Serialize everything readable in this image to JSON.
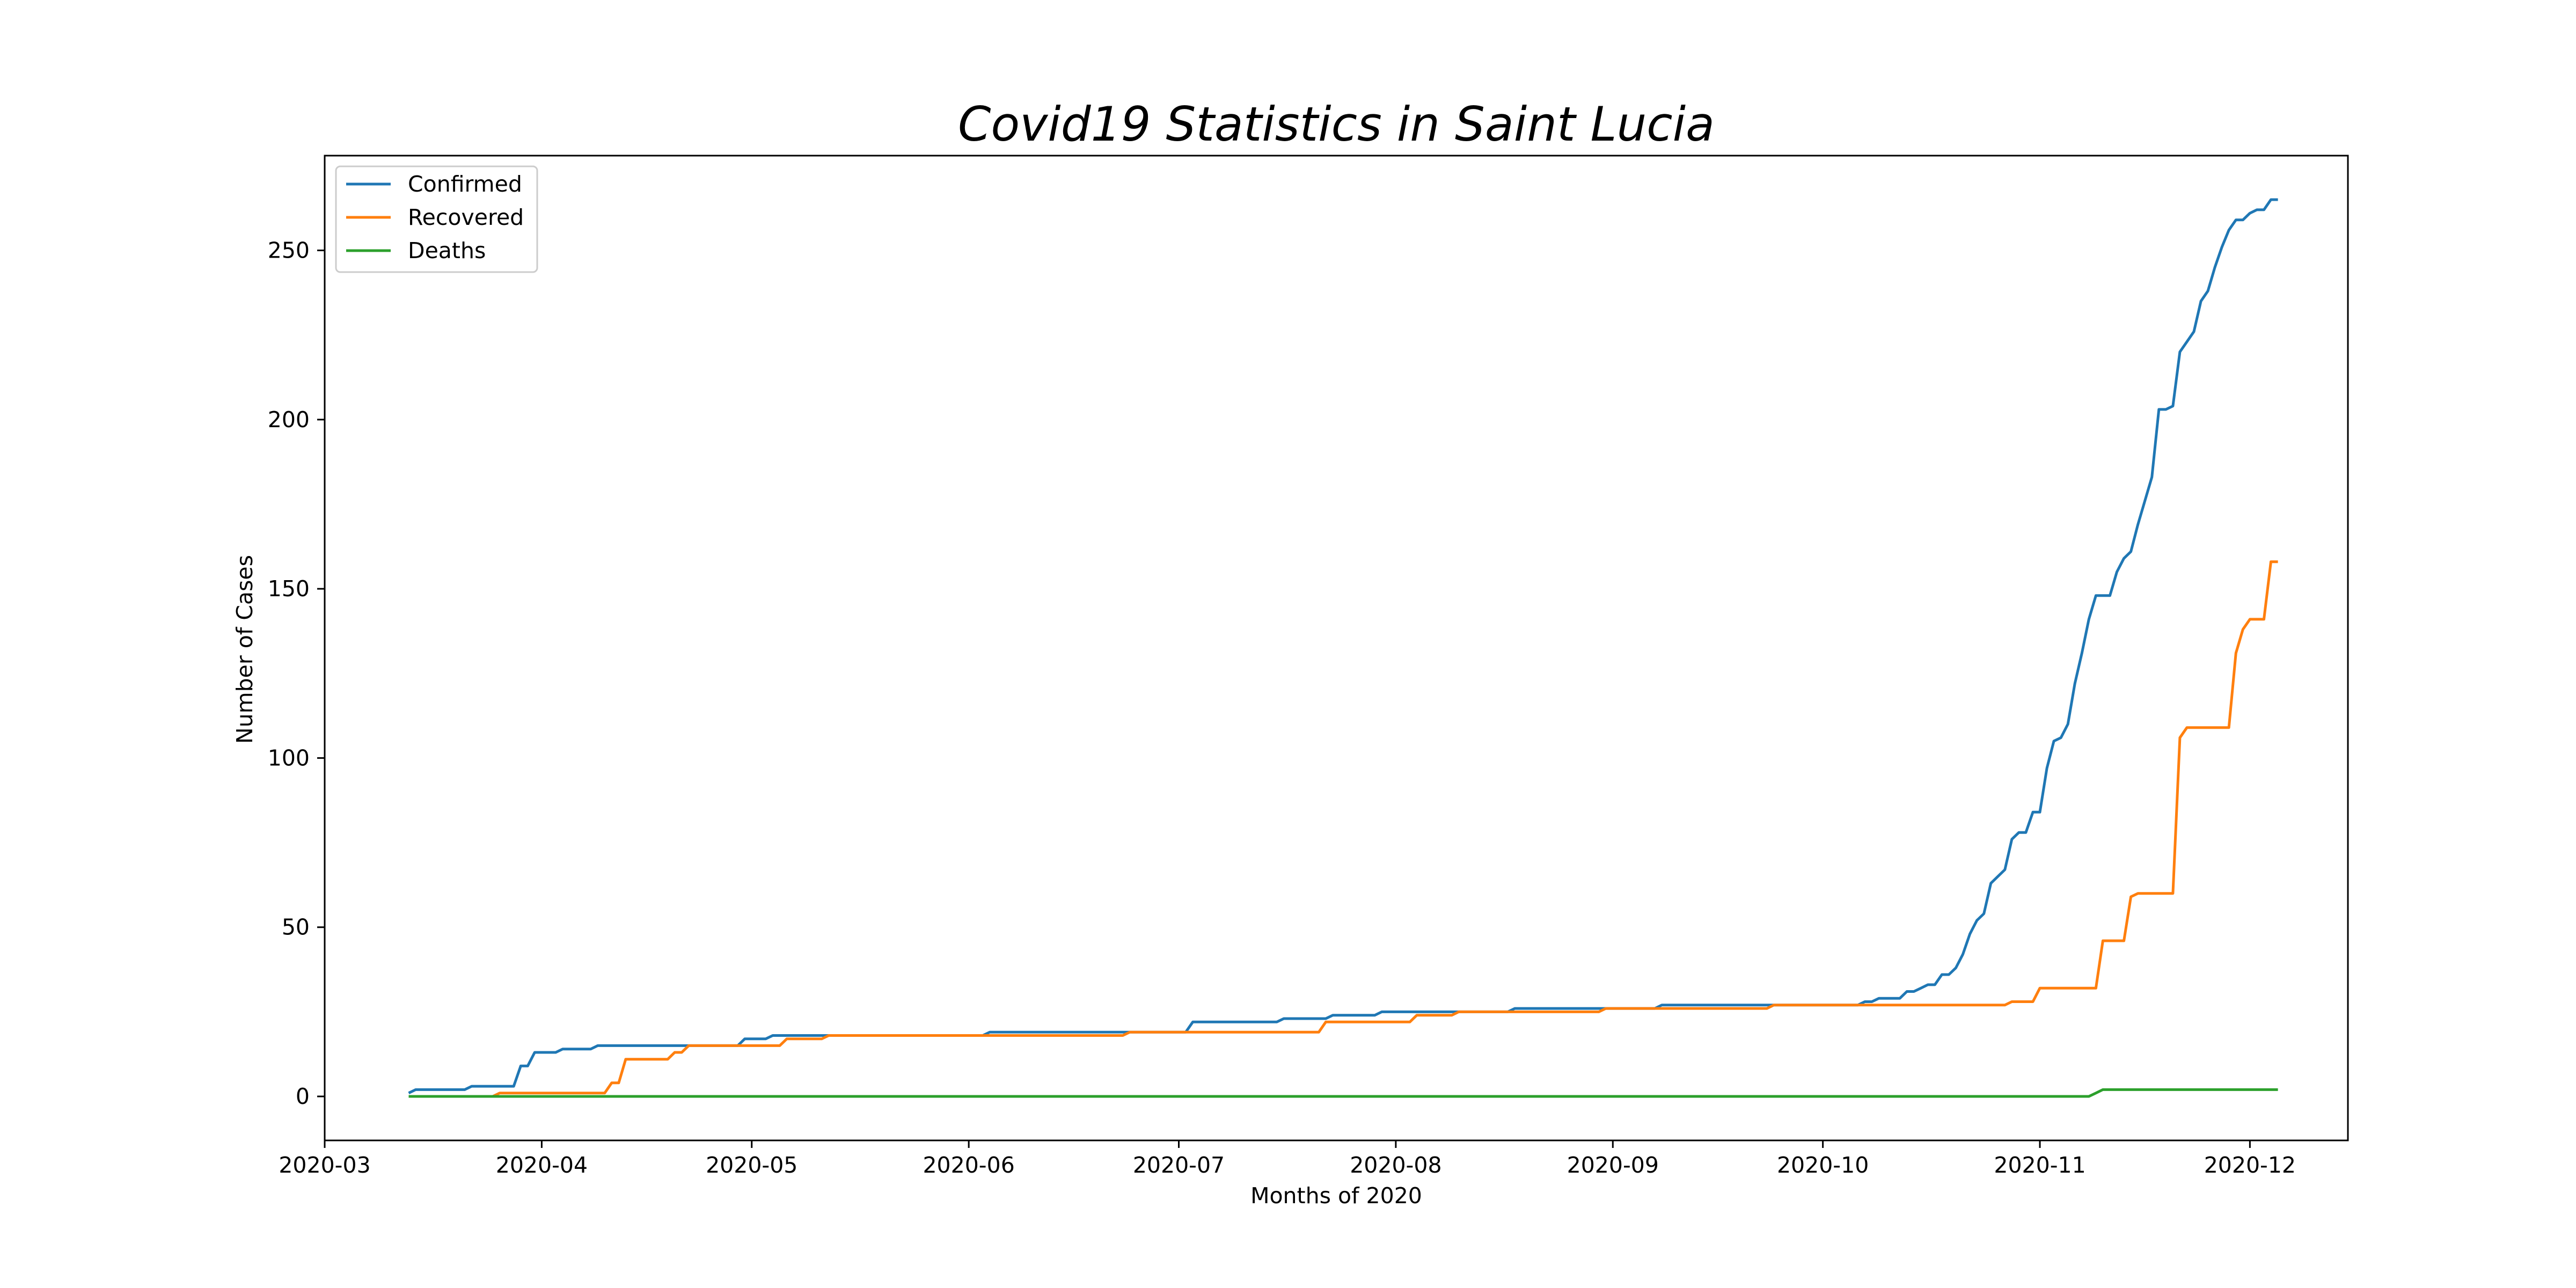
{
  "chart_data": {
    "type": "line",
    "title": "Covid19 Statistics in Saint Lucia",
    "xlabel": "Months of 2020",
    "ylabel": "Number of Cases",
    "x_axis_type": "date",
    "xlim": [
      "2020-03-01",
      "2020-12-15"
    ],
    "ylim": [
      -13,
      278
    ],
    "x_ticks": [
      "2020-03",
      "2020-04",
      "2020-05",
      "2020-06",
      "2020-07",
      "2020-08",
      "2020-09",
      "2020-10",
      "2020-11",
      "2020-12"
    ],
    "x_tick_dates": [
      "2020-03-01",
      "2020-04-01",
      "2020-05-01",
      "2020-06-01",
      "2020-07-01",
      "2020-08-01",
      "2020-09-01",
      "2020-10-01",
      "2020-11-01",
      "2020-12-01"
    ],
    "y_ticks": [
      0,
      50,
      100,
      150,
      200,
      250
    ],
    "grid": false,
    "legend_position": "upper-left",
    "series": [
      {
        "name": "Confirmed",
        "color": "#1f77b4",
        "points": [
          [
            "2020-03-13",
            1
          ],
          [
            "2020-03-14",
            2
          ],
          [
            "2020-03-21",
            2
          ],
          [
            "2020-03-22",
            3
          ],
          [
            "2020-03-28",
            3
          ],
          [
            "2020-03-29",
            9
          ],
          [
            "2020-03-30",
            9
          ],
          [
            "2020-03-31",
            13
          ],
          [
            "2020-04-03",
            13
          ],
          [
            "2020-04-04",
            14
          ],
          [
            "2020-04-08",
            14
          ],
          [
            "2020-04-09",
            15
          ],
          [
            "2020-04-29",
            15
          ],
          [
            "2020-04-30",
            17
          ],
          [
            "2020-05-03",
            17
          ],
          [
            "2020-05-04",
            18
          ],
          [
            "2020-06-03",
            18
          ],
          [
            "2020-06-04",
            19
          ],
          [
            "2020-07-02",
            19
          ],
          [
            "2020-07-03",
            22
          ],
          [
            "2020-07-15",
            22
          ],
          [
            "2020-07-16",
            23
          ],
          [
            "2020-07-22",
            23
          ],
          [
            "2020-07-23",
            24
          ],
          [
            "2020-07-29",
            24
          ],
          [
            "2020-07-30",
            25
          ],
          [
            "2020-08-17",
            25
          ],
          [
            "2020-08-18",
            26
          ],
          [
            "2020-09-07",
            26
          ],
          [
            "2020-09-08",
            27
          ],
          [
            "2020-09-24",
            27
          ],
          [
            "2020-09-25",
            27
          ],
          [
            "2020-10-06",
            27
          ],
          [
            "2020-10-07",
            28
          ],
          [
            "2020-10-08",
            28
          ],
          [
            "2020-10-09",
            29
          ],
          [
            "2020-10-12",
            29
          ],
          [
            "2020-10-13",
            31
          ],
          [
            "2020-10-14",
            31
          ],
          [
            "2020-10-15",
            32
          ],
          [
            "2020-10-16",
            33
          ],
          [
            "2020-10-17",
            33
          ],
          [
            "2020-10-18",
            36
          ],
          [
            "2020-10-19",
            36
          ],
          [
            "2020-10-20",
            38
          ],
          [
            "2020-10-21",
            42
          ],
          [
            "2020-10-22",
            48
          ],
          [
            "2020-10-23",
            52
          ],
          [
            "2020-10-24",
            54
          ],
          [
            "2020-10-25",
            63
          ],
          [
            "2020-10-26",
            65
          ],
          [
            "2020-10-27",
            67
          ],
          [
            "2020-10-28",
            76
          ],
          [
            "2020-10-29",
            78
          ],
          [
            "2020-10-30",
            78
          ],
          [
            "2020-10-31",
            84
          ],
          [
            "2020-11-01",
            84
          ],
          [
            "2020-11-02",
            97
          ],
          [
            "2020-11-03",
            105
          ],
          [
            "2020-11-04",
            106
          ],
          [
            "2020-11-05",
            110
          ],
          [
            "2020-11-06",
            122
          ],
          [
            "2020-11-07",
            131
          ],
          [
            "2020-11-08",
            141
          ],
          [
            "2020-11-09",
            148
          ],
          [
            "2020-11-10",
            148
          ],
          [
            "2020-11-11",
            148
          ],
          [
            "2020-11-12",
            155
          ],
          [
            "2020-11-13",
            159
          ],
          [
            "2020-11-14",
            161
          ],
          [
            "2020-11-15",
            169
          ],
          [
            "2020-11-16",
            176
          ],
          [
            "2020-11-17",
            183
          ],
          [
            "2020-11-18",
            203
          ],
          [
            "2020-11-19",
            203
          ],
          [
            "2020-11-20",
            204
          ],
          [
            "2020-11-21",
            220
          ],
          [
            "2020-11-22",
            223
          ],
          [
            "2020-11-23",
            226
          ],
          [
            "2020-11-24",
            235
          ],
          [
            "2020-11-25",
            238
          ],
          [
            "2020-11-26",
            245
          ],
          [
            "2020-11-27",
            251
          ],
          [
            "2020-11-28",
            256
          ],
          [
            "2020-11-29",
            259
          ],
          [
            "2020-11-30",
            259
          ],
          [
            "2020-12-01",
            261
          ],
          [
            "2020-12-02",
            262
          ],
          [
            "2020-12-03",
            262
          ],
          [
            "2020-12-04",
            265
          ],
          [
            "2020-12-05",
            265
          ]
        ]
      },
      {
        "name": "Recovered",
        "color": "#ff7f0e",
        "points": [
          [
            "2020-03-13",
            0
          ],
          [
            "2020-03-25",
            0
          ],
          [
            "2020-03-26",
            1
          ],
          [
            "2020-04-10",
            1
          ],
          [
            "2020-04-11",
            4
          ],
          [
            "2020-04-12",
            4
          ],
          [
            "2020-04-13",
            11
          ],
          [
            "2020-04-19",
            11
          ],
          [
            "2020-04-20",
            13
          ],
          [
            "2020-04-21",
            13
          ],
          [
            "2020-04-22",
            15
          ],
          [
            "2020-05-05",
            15
          ],
          [
            "2020-05-06",
            17
          ],
          [
            "2020-05-11",
            17
          ],
          [
            "2020-05-12",
            18
          ],
          [
            "2020-06-23",
            18
          ],
          [
            "2020-06-24",
            19
          ],
          [
            "2020-07-21",
            19
          ],
          [
            "2020-07-22",
            22
          ],
          [
            "2020-08-03",
            22
          ],
          [
            "2020-08-04",
            24
          ],
          [
            "2020-08-09",
            24
          ],
          [
            "2020-08-10",
            25
          ],
          [
            "2020-08-30",
            25
          ],
          [
            "2020-08-31",
            26
          ],
          [
            "2020-09-23",
            26
          ],
          [
            "2020-09-24",
            27
          ],
          [
            "2020-10-27",
            27
          ],
          [
            "2020-10-28",
            28
          ],
          [
            "2020-10-31",
            28
          ],
          [
            "2020-11-01",
            32
          ],
          [
            "2020-11-09",
            32
          ],
          [
            "2020-11-10",
            46
          ],
          [
            "2020-11-13",
            46
          ],
          [
            "2020-11-14",
            59
          ],
          [
            "2020-11-15",
            60
          ],
          [
            "2020-11-20",
            60
          ],
          [
            "2020-11-21",
            106
          ],
          [
            "2020-11-22",
            109
          ],
          [
            "2020-11-28",
            109
          ],
          [
            "2020-11-29",
            131
          ],
          [
            "2020-11-30",
            138
          ],
          [
            "2020-12-01",
            141
          ],
          [
            "2020-12-03",
            141
          ],
          [
            "2020-12-04",
            158
          ],
          [
            "2020-12-05",
            158
          ]
        ]
      },
      {
        "name": "Deaths",
        "color": "#2ca02c",
        "points": [
          [
            "2020-03-13",
            0
          ],
          [
            "2020-11-08",
            0
          ],
          [
            "2020-11-09",
            1
          ],
          [
            "2020-11-10",
            2
          ],
          [
            "2020-12-05",
            2
          ]
        ]
      }
    ]
  }
}
